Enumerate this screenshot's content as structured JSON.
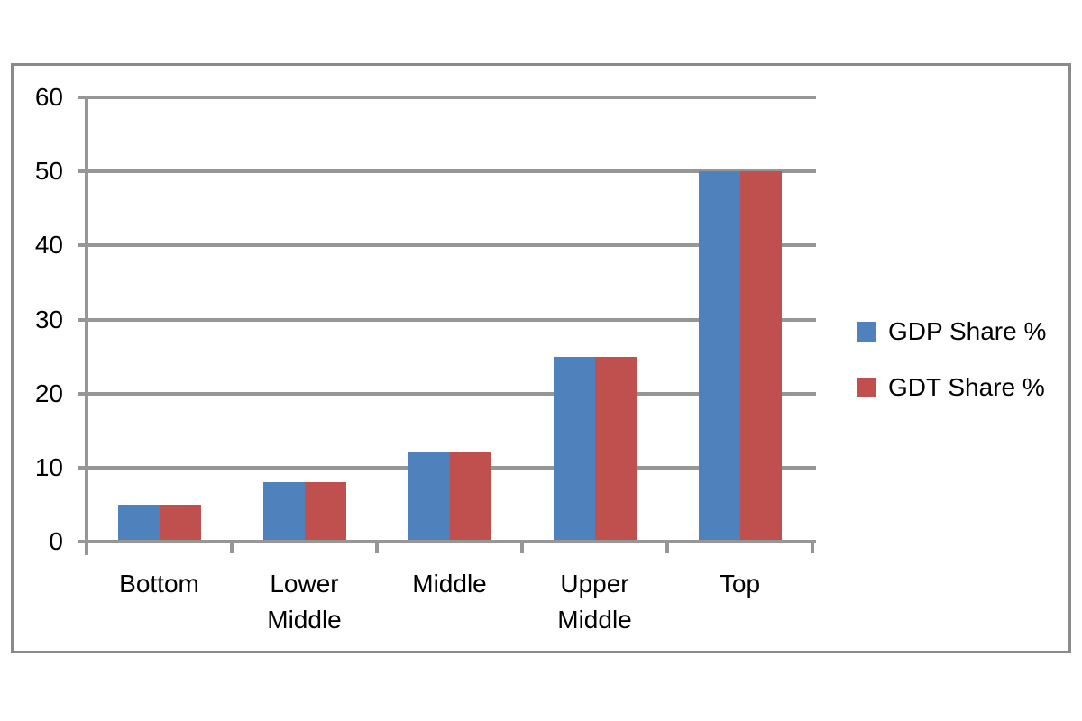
{
  "chart_data": {
    "type": "bar",
    "categories": [
      "Bottom",
      "Lower Middle",
      "Middle",
      "Upper Middle",
      "Top"
    ],
    "series": [
      {
        "name": "GDP Share %",
        "color": "#4F81BD",
        "values": [
          5,
          8,
          12,
          25,
          50
        ]
      },
      {
        "name": "GDT Share %",
        "color": "#C0504D",
        "values": [
          5,
          8,
          12,
          25,
          50
        ]
      }
    ],
    "ylim": [
      0,
      60
    ],
    "ytick_step": 10,
    "ytick_labels": [
      "0",
      "10",
      "20",
      "30",
      "40",
      "50",
      "60"
    ],
    "grid": "horizontal",
    "legend_position": "right"
  },
  "colors": {
    "gridline": "#969696",
    "axis": "#969696",
    "frame_border": "#8a8a8a",
    "background": "#ffffff",
    "text": "#000000"
  }
}
